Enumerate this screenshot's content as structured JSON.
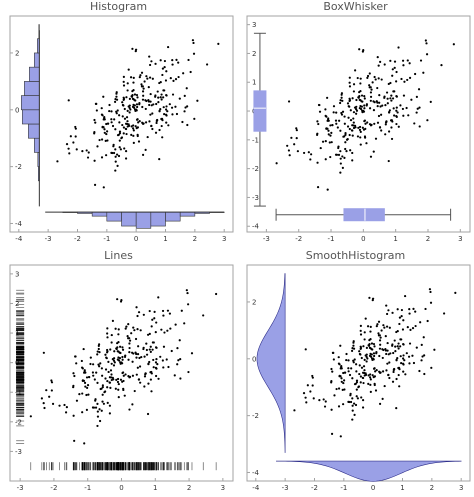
{
  "colors": {
    "marginal_fill": "#9aa0e6",
    "marginal_edge": "#2d2d8a",
    "points": "#000000",
    "frame": "#a3a3a3"
  },
  "panels": [
    {
      "title": "Histogram"
    },
    {
      "title": "BoxWhisker"
    },
    {
      "title": "Lines"
    },
    {
      "title": "SmoothHistogram"
    }
  ],
  "chart_data": [
    {
      "type": "scatter",
      "title": "Histogram",
      "marginal": "histogram",
      "xlim": [
        -4.3,
        3.3
      ],
      "ylim": [
        -4.3,
        3.3
      ],
      "x_ticks": [
        -4,
        -3,
        -2,
        -1,
        0,
        1,
        2,
        3
      ],
      "y_ticks": [
        -4,
        -2,
        0,
        2
      ],
      "grid": false,
      "y_histogram": {
        "bin_width": 0.5,
        "bin_starts": [
          -2.5,
          -2.0,
          -1.5,
          -1.0,
          -0.5,
          0.0,
          0.5,
          1.0,
          1.5,
          2.0,
          2.5
        ],
        "counts": [
          2,
          3,
          10,
          22,
          34,
          36,
          30,
          20,
          10,
          4,
          1
        ]
      },
      "x_histogram": {
        "bin_width": 0.5,
        "bin_starts": [
          -2.5,
          -2.0,
          -1.5,
          -1.0,
          -0.5,
          0.0,
          0.5,
          1.0,
          1.5,
          2.0,
          2.5
        ],
        "counts": [
          1,
          3,
          9,
          20,
          31,
          36,
          31,
          20,
          9,
          3,
          1
        ]
      }
    },
    {
      "type": "scatter",
      "title": "BoxWhisker",
      "marginal": "boxwhisker",
      "xlim": [
        -3.6,
        3.3
      ],
      "ylim": [
        -4.2,
        3.3
      ],
      "x_ticks": [
        -3,
        -2,
        -1,
        0,
        1,
        2,
        3
      ],
      "y_ticks": [
        -4,
        -3,
        -2,
        -1,
        0,
        1,
        2,
        3
      ],
      "grid": false,
      "y_box": {
        "min": -3.3,
        "q1": -0.7,
        "median": 0.1,
        "q3": 0.7,
        "max": 2.7
      },
      "x_box": {
        "min": -2.7,
        "q1": -0.6,
        "median": 0.05,
        "q3": 0.65,
        "max": 2.7
      }
    },
    {
      "type": "scatter",
      "title": "Lines",
      "marginal": "rug",
      "xlim": [
        -3.3,
        3.3
      ],
      "ylim": [
        -4.0,
        3.3
      ],
      "x_ticks": [
        -3,
        -2,
        -1,
        0,
        1,
        2,
        3
      ],
      "y_ticks": [
        -3,
        -2,
        -1,
        0,
        1,
        2,
        3
      ],
      "grid": false
    },
    {
      "type": "scatter",
      "title": "SmoothHistogram",
      "marginal": "smooth_histogram",
      "xlim": [
        -4.3,
        3.3
      ],
      "ylim": [
        -4.3,
        3.3
      ],
      "x_ticks": [
        -4,
        -3,
        -2,
        -1,
        0,
        1,
        2,
        3
      ],
      "y_ticks": [
        -4,
        -2,
        0,
        2
      ],
      "grid": false
    }
  ]
}
